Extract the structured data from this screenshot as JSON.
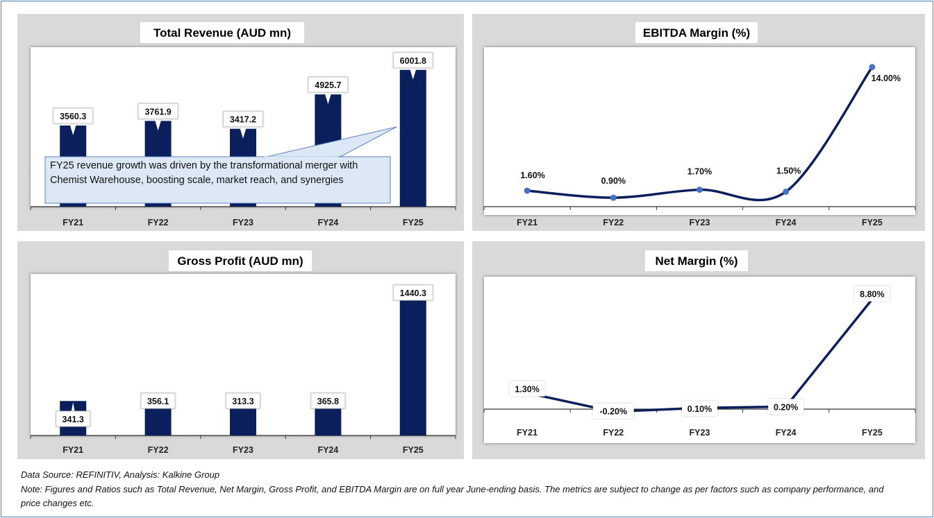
{
  "chart_data": [
    {
      "type": "bar",
      "title": "Total Revenue (AUD mn)",
      "categories": [
        "FY21",
        "FY22",
        "FY23",
        "FY24",
        "FY25"
      ],
      "values": [
        3560.3,
        3761.9,
        3417.2,
        4925.7,
        6001.8
      ],
      "labels": [
        "3560.3",
        "3761.9",
        "3417.2",
        "4925.7",
        "6001.8"
      ],
      "ylim": [
        0,
        7000
      ],
      "grid": false,
      "color": "#0b1f5c",
      "annotation": " FY25 revenue growth was driven by the transformational merger with Chemist Warehouse, boosting scale, market reach, and synergies"
    },
    {
      "type": "line",
      "title": "EBITDA Margin (%)",
      "categories": [
        "FY21",
        "FY22",
        "FY23",
        "FY24",
        "FY25"
      ],
      "values": [
        1.6,
        0.9,
        1.7,
        1.5,
        14.0
      ],
      "labels": [
        "1.60%",
        "0.90%",
        "1.70%",
        "1.50%",
        "14.00%"
      ],
      "ylim": [
        0,
        16
      ],
      "grid": false,
      "color": "#0b1f5c",
      "marker_color": "#4472c4"
    },
    {
      "type": "bar",
      "title": "Gross Profit (AUD mn)",
      "categories": [
        "FY21",
        "FY22",
        "FY23",
        "FY24",
        "FY25"
      ],
      "values": [
        341.3,
        356.1,
        313.3,
        365.8,
        1440.3
      ],
      "labels": [
        "341.3",
        "356.1",
        "313.3",
        "365.8",
        "1440.3"
      ],
      "ylim": [
        0,
        1600
      ],
      "grid": false,
      "color": "#0b1f5c"
    },
    {
      "type": "line",
      "title": "Net Margin (%)",
      "categories": [
        "FY21",
        "FY22",
        "FY23",
        "FY24",
        "FY25"
      ],
      "values": [
        1.3,
        -0.2,
        0.1,
        0.2,
        8.8
      ],
      "labels": [
        "1.30%",
        "-0.20%",
        "0.10%",
        "0.20%",
        "8.80%"
      ],
      "ylim": [
        -2.1,
        10.6
      ],
      "grid": false,
      "color": "#0b1f5c"
    }
  ],
  "footer": {
    "source": "Data Source: REFINITIV, Analysis: Kalkine Group",
    "note": "Note: Figures and Ratios such as Total Revenue, Net Margin, Gross Profit, and EBITDA Margin are on full year June-ending basis. The metrics are subject to change as per factors such as company performance, and price changes etc."
  }
}
